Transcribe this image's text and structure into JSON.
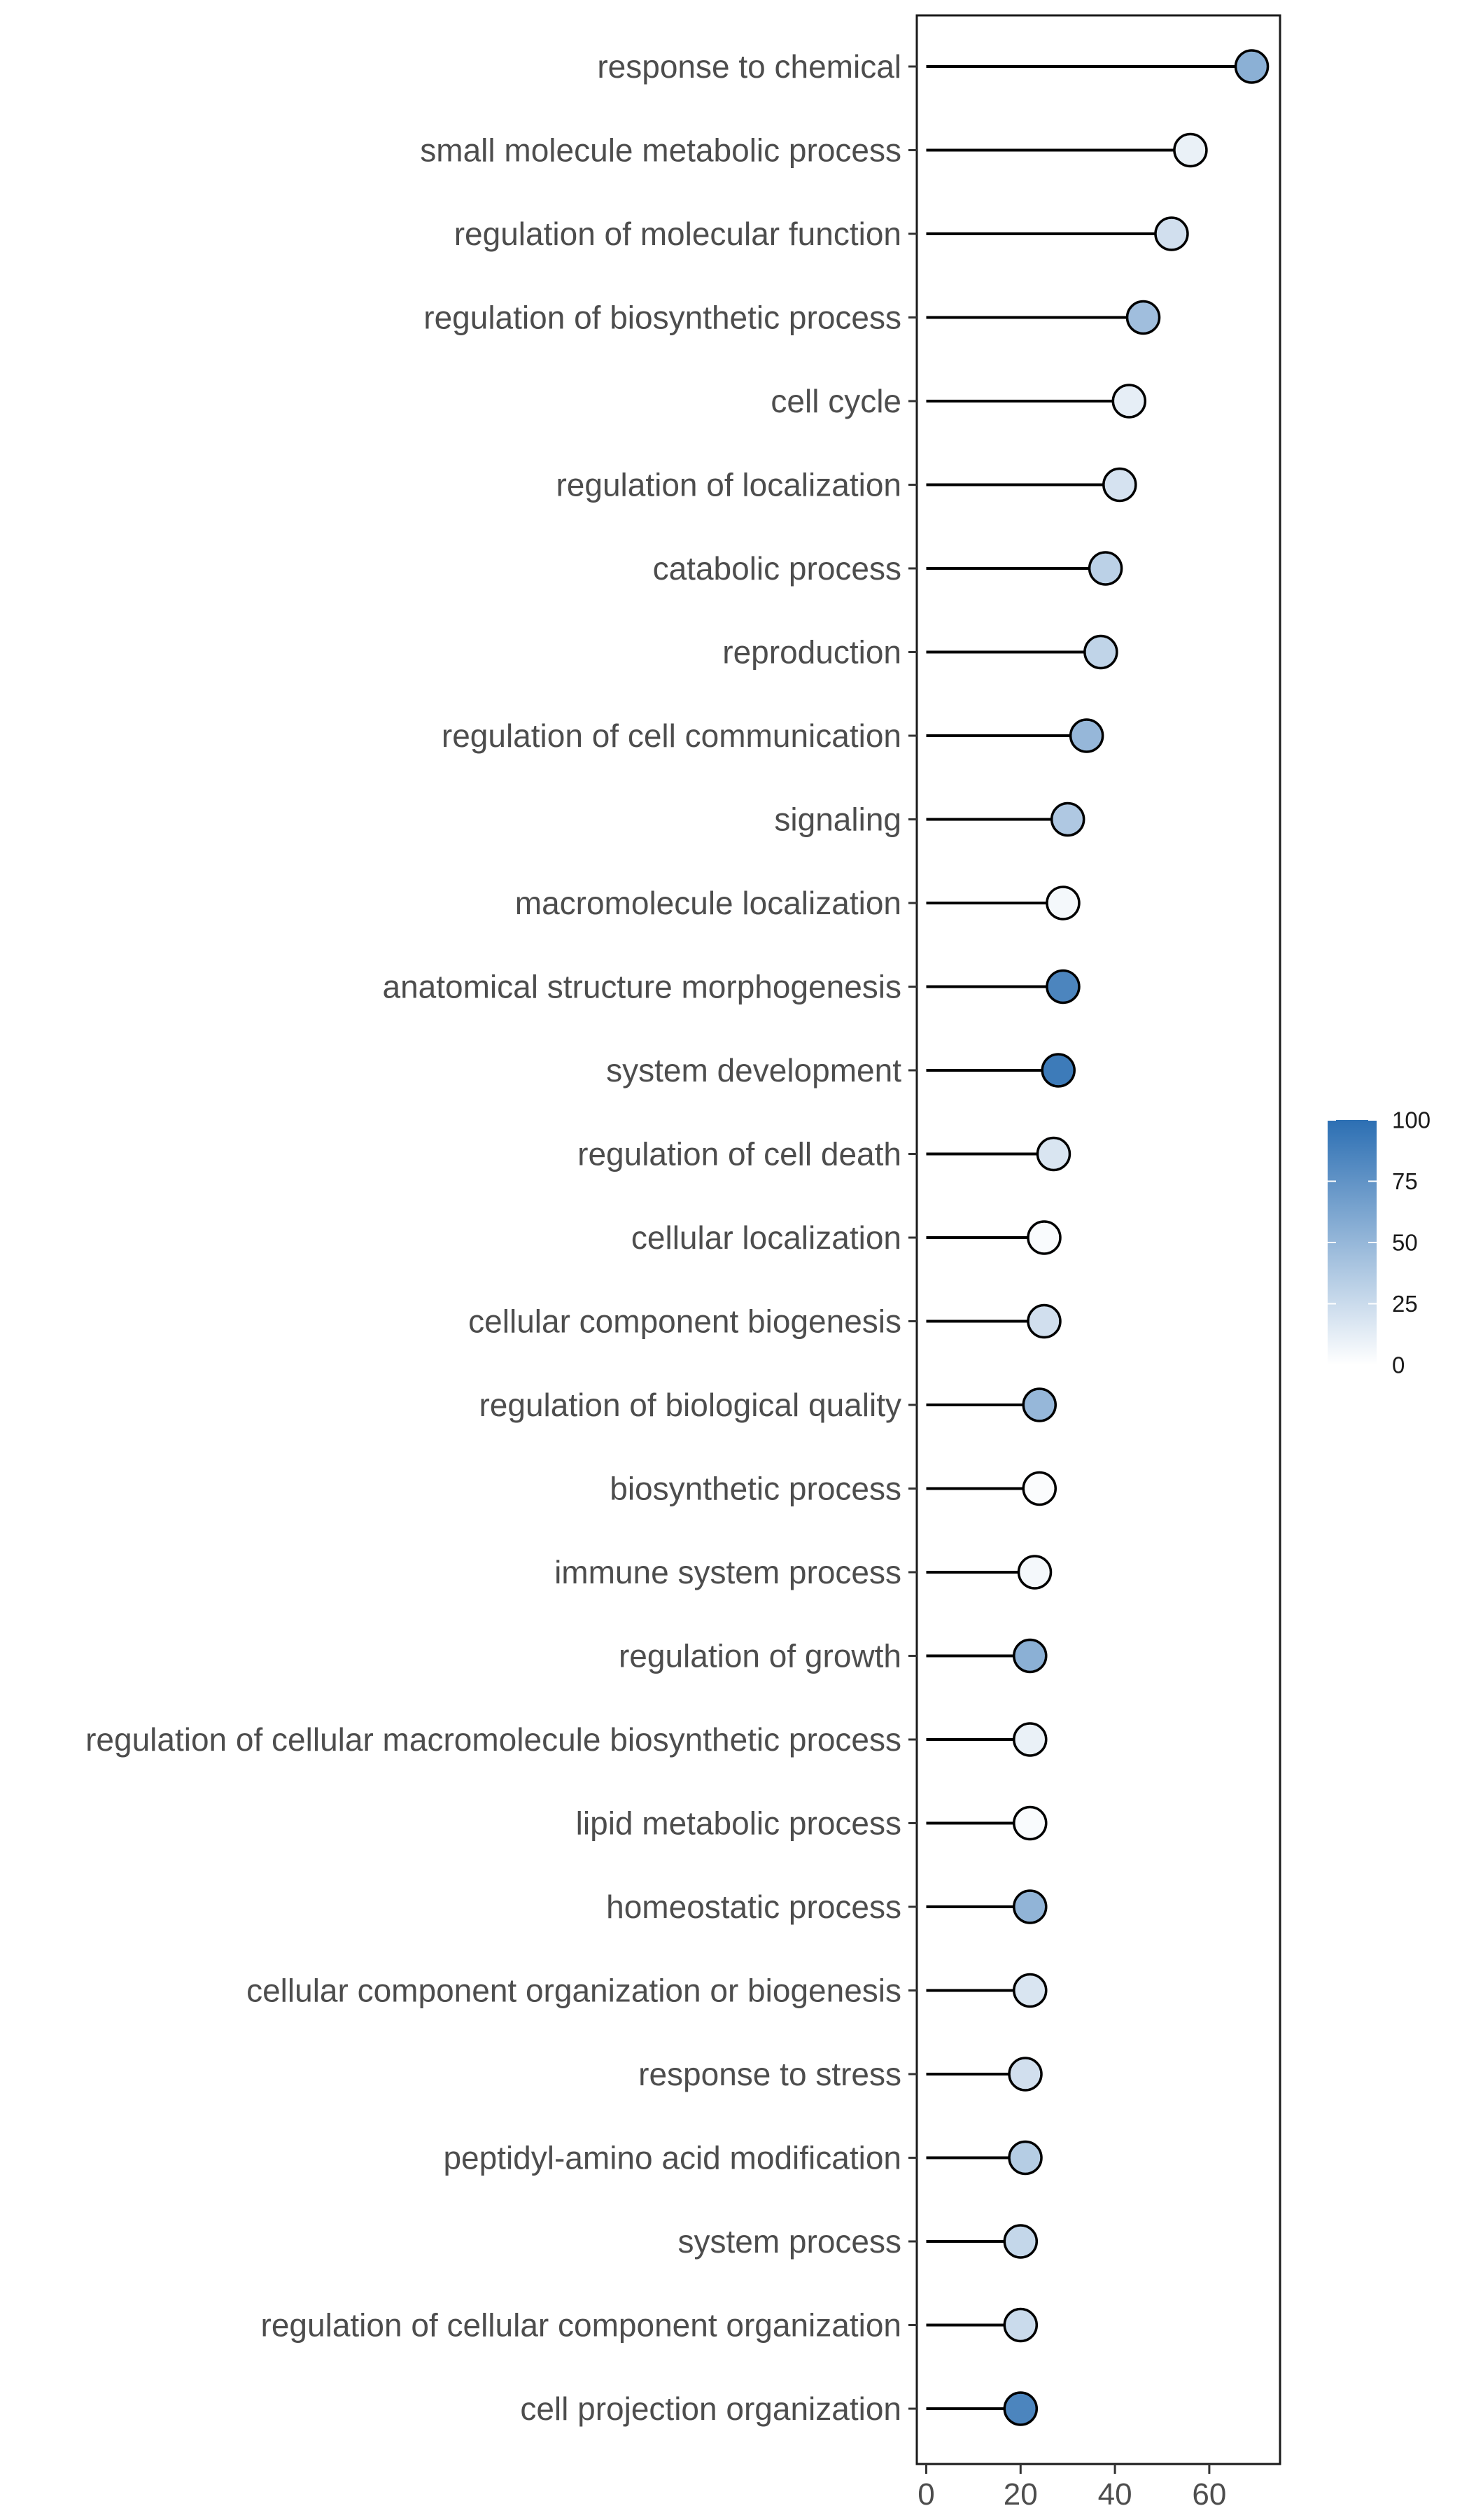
{
  "chart_data": {
    "type": "lollipop",
    "title": "",
    "xlabel": "",
    "ylabel": "",
    "xlim": [
      -2,
      75
    ],
    "x_ticks": [
      0,
      20,
      40,
      60
    ],
    "x_tick_labels": [
      "0",
      "20",
      "40",
      "60"
    ],
    "grid": false,
    "color_scale": {
      "min": 0,
      "max": 100,
      "ticks": [
        0,
        25,
        50,
        75,
        100
      ],
      "tick_labels": [
        "0",
        "25",
        "50",
        "75",
        "100"
      ],
      "low_color": "#ffffff",
      "high_color": "#2c6fb3",
      "placement": "right"
    },
    "categories": [
      "response to chemical",
      "small molecule metabolic process",
      "regulation of molecular function",
      "regulation of biosynthetic process",
      "cell cycle",
      "regulation of localization",
      "catabolic process",
      "reproduction",
      "regulation of cell communication",
      "signaling",
      "macromolecule localization",
      "anatomical structure morphogenesis",
      "system development",
      "regulation of cell death",
      "cellular localization",
      "cellular component biogenesis",
      "regulation of biological quality",
      "biosynthetic process",
      "immune system process",
      "regulation of growth",
      "regulation of cellular macromolecule biosynthetic process",
      "lipid metabolic process",
      "homeostatic process",
      "cellular component organization or biogenesis",
      "response to stress",
      "peptidyl-amino acid modification",
      "system process",
      "regulation of cellular component organization",
      "cell projection organization"
    ],
    "values": [
      69,
      56,
      52,
      46,
      43,
      41,
      38,
      37,
      34,
      30,
      29,
      29,
      28,
      27,
      25,
      25,
      24,
      24,
      23,
      22,
      22,
      22,
      22,
      22,
      21,
      21,
      20,
      20,
      20
    ],
    "color_values": [
      55,
      10,
      22,
      45,
      12,
      20,
      32,
      30,
      50,
      38,
      5,
      85,
      92,
      18,
      3,
      22,
      50,
      2,
      5,
      55,
      10,
      3,
      52,
      18,
      22,
      35,
      28,
      25,
      85
    ]
  }
}
